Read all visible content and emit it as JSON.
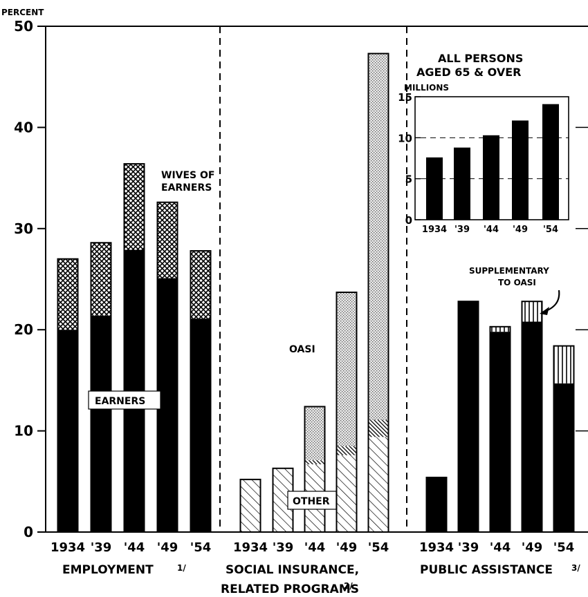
{
  "chart_data": {
    "type": "bar",
    "ylabel": "PERCENT",
    "ylim": [
      0,
      50
    ],
    "yticks": [
      "0",
      "10",
      "20",
      "30",
      "40",
      "50"
    ],
    "groups": [
      {
        "name": "EMPLOYMENT",
        "footnote": "1/",
        "categories": [
          "1934",
          "'39",
          "'44",
          "'49",
          "'54"
        ],
        "series": [
          {
            "name": "EARNERS",
            "pattern": "solid",
            "values": [
              20,
              21.4,
              27.9,
              25.1,
              21.1
            ]
          },
          {
            "name": "WIVES OF EARNERS",
            "pattern": "crosshatch",
            "values": [
              7,
              7.2,
              8.5,
              7.5,
              6.7
            ]
          }
        ],
        "labels": {
          "earners": "EARNERS",
          "wives_line1": "WIVES OF",
          "wives_line2": "EARNERS"
        }
      },
      {
        "name_line1": "SOCIAL INSURANCE,",
        "name_line2": "RELATED PROGRAMS",
        "footnote": "2/",
        "categories": [
          "1934",
          "'39",
          "'44",
          "'49",
          "'54"
        ],
        "series": [
          {
            "name": "OTHER",
            "pattern": "diagonal",
            "values": [
              5.2,
              6.3,
              6.7,
              7.6,
              9.4
            ]
          },
          {
            "name": "",
            "pattern": "dense-diagonal",
            "values": [
              0,
              0,
              0.4,
              0.9,
              1.7
            ]
          },
          {
            "name": "OASI",
            "pattern": "stipple",
            "values": [
              0,
              0,
              5.3,
              15.2,
              36.2
            ]
          }
        ],
        "labels": {
          "oasi": "OASI",
          "other": "OTHER"
        }
      },
      {
        "name": "PUBLIC ASSISTANCE",
        "footnote": "3/",
        "categories": [
          "1934",
          "'39",
          "'44",
          "'49",
          "'54"
        ],
        "series": [
          {
            "name": "",
            "pattern": "solid",
            "values": [
              5.4,
              22.8,
              19.8,
              20.8,
              14.7
            ]
          },
          {
            "name": "SUPPLEMENTARY TO OASI",
            "pattern": "vertical",
            "values": [
              0,
              0,
              0.5,
              2.0,
              3.7
            ]
          }
        ],
        "labels": {
          "supp_line1": "SUPPLEMENTARY",
          "supp_line2": "TO OASI"
        }
      }
    ],
    "inset": {
      "title_line1": "ALL PERSONS",
      "title_line2": "AGED 65 & OVER",
      "ylabel": "MILLIONS",
      "ylim": [
        0,
        15
      ],
      "yticks": [
        "0",
        "5",
        "10",
        "15"
      ],
      "categories": [
        "1934",
        "'39",
        "'44",
        "'49",
        "'54"
      ],
      "values": [
        7.6,
        8.8,
        10.3,
        12.1,
        14.1
      ]
    }
  }
}
